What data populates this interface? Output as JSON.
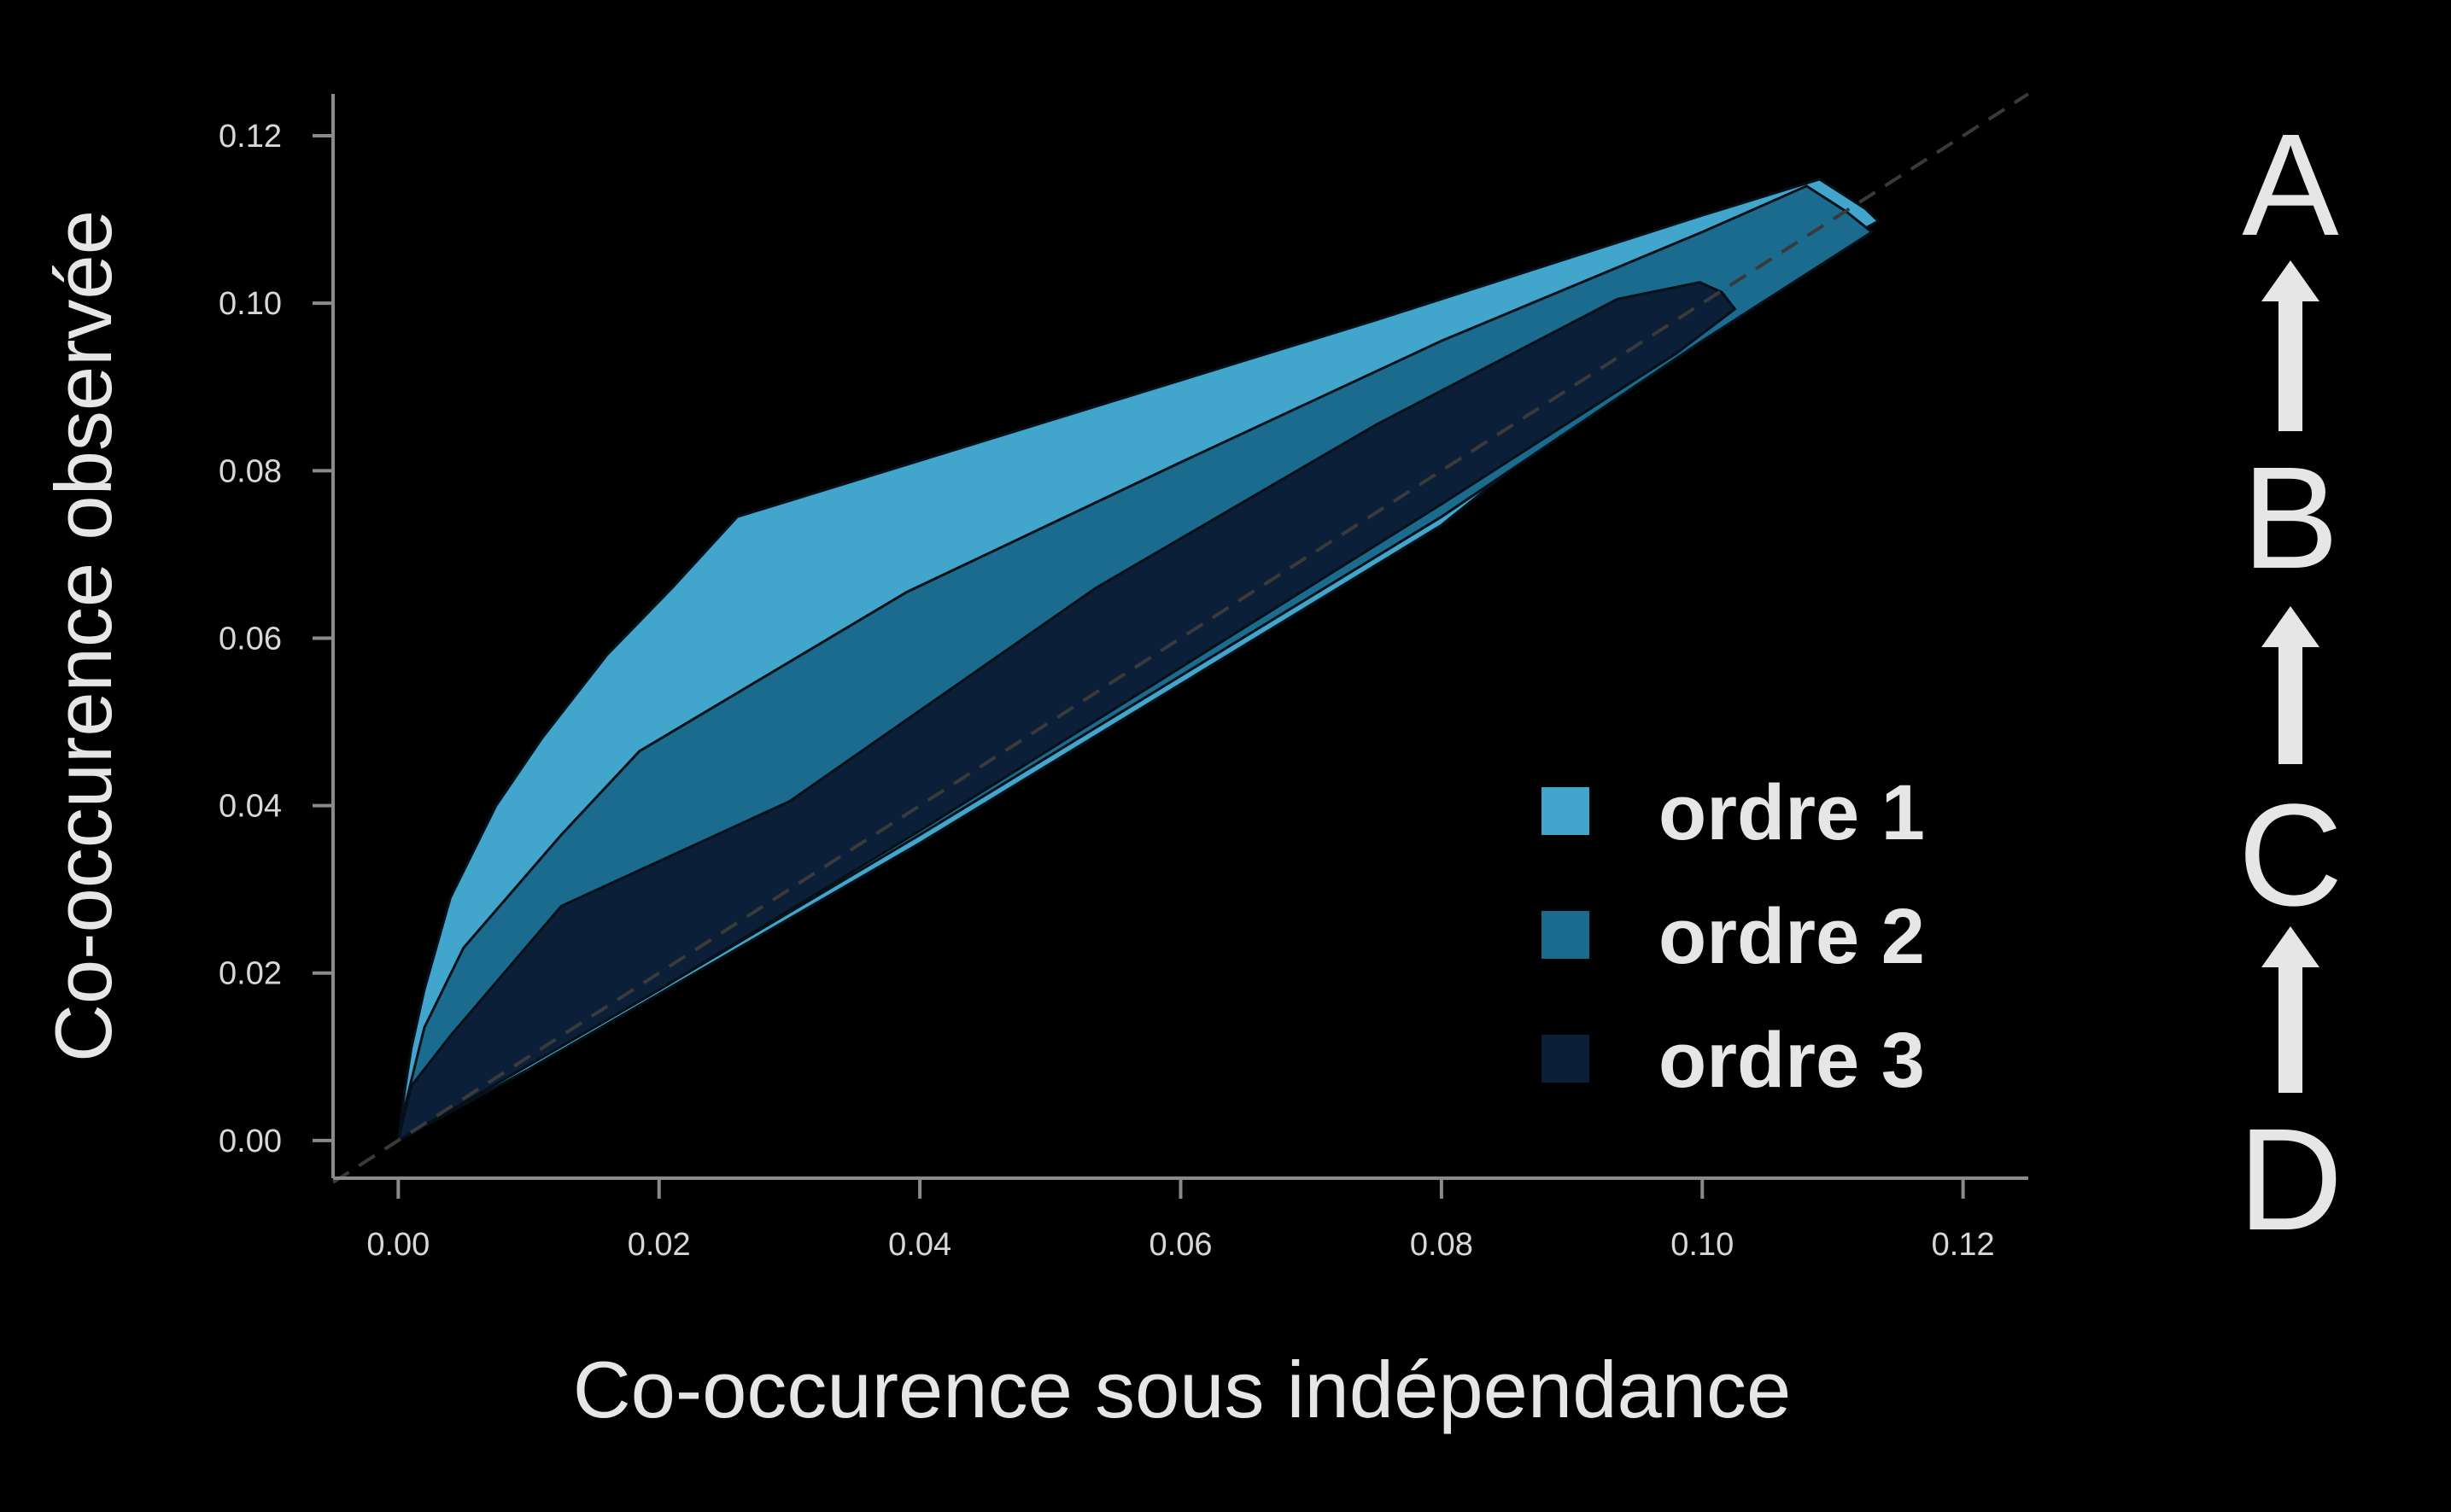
{
  "chart_data": {
    "type": "area",
    "xlabel": "Co-occurence sous indépendance",
    "ylabel": "Co-occurence observée",
    "xlim": [
      -0.005,
      0.125
    ],
    "ylim": [
      -0.0045,
      0.125
    ],
    "xticks": [
      "0.00",
      "0.02",
      "0.04",
      "0.06",
      "0.08",
      "0.10",
      "0.12"
    ],
    "yticks": [
      "0.00",
      "0.02",
      "0.04",
      "0.06",
      "0.08",
      "0.10",
      "0.12"
    ],
    "grid": false,
    "legend_position": "bottom-right",
    "reference_line": {
      "style": "dashed",
      "from": [
        -0.005,
        -0.005
      ],
      "to": [
        0.125,
        0.125
      ],
      "color": "#3a3a3a"
    },
    "series": [
      {
        "name": "ordre 1",
        "color": "#42a6cc",
        "upper": [
          [
            0,
            0
          ],
          [
            0.0005,
            0.006
          ],
          [
            0.001,
            0.011
          ],
          [
            0.002,
            0.018
          ],
          [
            0.004,
            0.029
          ],
          [
            0.0075,
            0.04
          ],
          [
            0.011,
            0.048
          ],
          [
            0.016,
            0.058
          ],
          [
            0.021,
            0.066
          ],
          [
            0.026,
            0.0745
          ],
          [
            0.05,
            0.086
          ],
          [
            0.075,
            0.098
          ],
          [
            0.1,
            0.1105
          ],
          [
            0.109,
            0.1148
          ],
          [
            0.1125,
            0.1113
          ],
          [
            0.1135,
            0.1098
          ]
        ],
        "lower": [
          [
            0,
            0
          ],
          [
            0.01,
            0.0085
          ],
          [
            0.02,
            0.0175
          ],
          [
            0.04,
            0.0355
          ],
          [
            0.06,
            0.0545
          ],
          [
            0.08,
            0.0735
          ],
          [
            0.1,
            0.0985
          ],
          [
            0.111,
            0.1077
          ],
          [
            0.1135,
            0.1098
          ]
        ]
      },
      {
        "name": "ordre 2",
        "color": "#1a6b8e",
        "upper": [
          [
            0,
            0
          ],
          [
            0.0005,
            0.004
          ],
          [
            0.002,
            0.0135
          ],
          [
            0.005,
            0.023
          ],
          [
            0.0125,
            0.0365
          ],
          [
            0.0185,
            0.0465
          ],
          [
            0.039,
            0.0655
          ],
          [
            0.06,
            0.081
          ],
          [
            0.08,
            0.0955
          ],
          [
            0.1,
            0.1085
          ],
          [
            0.108,
            0.114
          ],
          [
            0.111,
            0.111
          ],
          [
            0.113,
            0.1085
          ]
        ],
        "lower": [
          [
            0,
            0
          ],
          [
            0.02,
            0.018
          ],
          [
            0.04,
            0.0365
          ],
          [
            0.06,
            0.0555
          ],
          [
            0.08,
            0.0745
          ],
          [
            0.1,
            0.0955
          ],
          [
            0.113,
            0.1085
          ]
        ]
      },
      {
        "name": "ordre 3",
        "color": "#0b2038",
        "upper": [
          [
            0,
            0
          ],
          [
            0.001,
            0.0065
          ],
          [
            0.004,
            0.0125
          ],
          [
            0.0125,
            0.028
          ],
          [
            0.03,
            0.0405
          ],
          [
            0.0535,
            0.066
          ],
          [
            0.075,
            0.0855
          ],
          [
            0.0935,
            0.1005
          ],
          [
            0.0998,
            0.1025
          ],
          [
            0.1015,
            0.1013
          ],
          [
            0.1025,
            0.0993
          ]
        ],
        "lower": [
          [
            0,
            0
          ],
          [
            0.02,
            0.018
          ],
          [
            0.04,
            0.037
          ],
          [
            0.06,
            0.0565
          ],
          [
            0.08,
            0.076
          ],
          [
            0.098,
            0.094
          ],
          [
            0.1025,
            0.0993
          ]
        ]
      }
    ]
  },
  "side_scale": {
    "letters": [
      "A",
      "B",
      "C",
      "D"
    ],
    "arrow_direction": "up",
    "color": "#e6e6e6"
  }
}
